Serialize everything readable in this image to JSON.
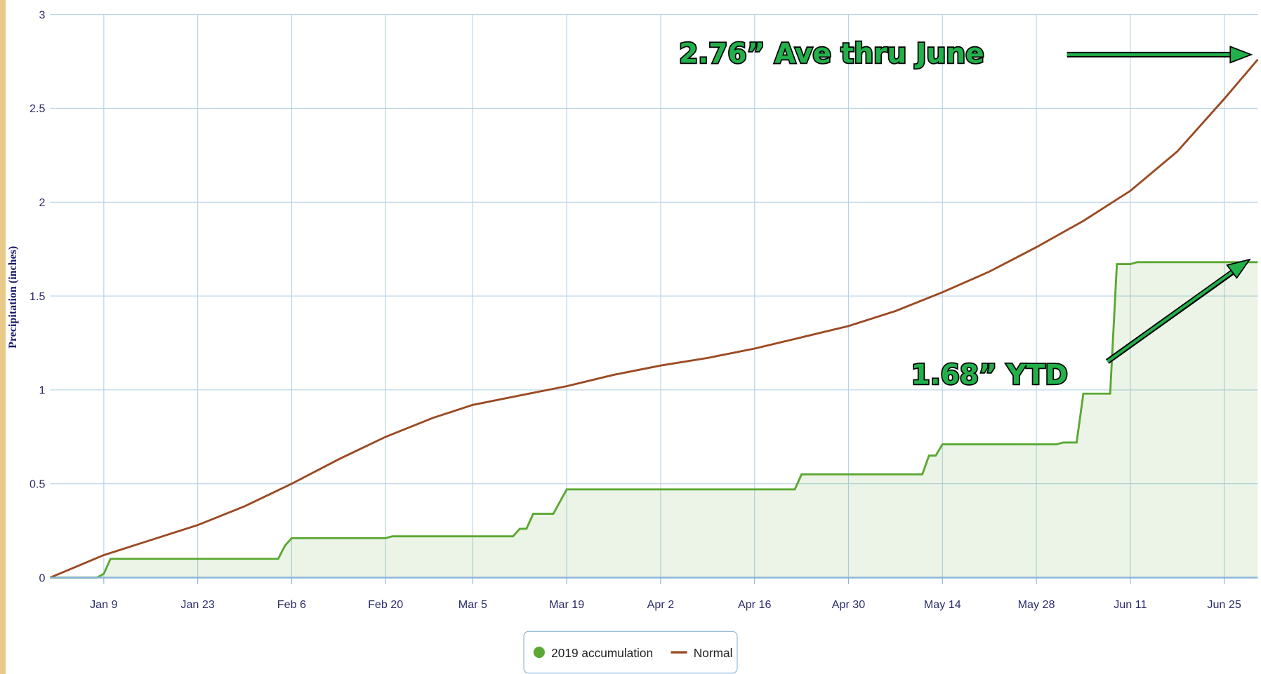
{
  "chart_data": {
    "type": "line",
    "ylabel": "Precipitation (inches)",
    "xlim": [
      1,
      181
    ],
    "ylim": [
      0,
      3
    ],
    "yticks": [
      0,
      0.5,
      1,
      1.5,
      2,
      2.5,
      3
    ],
    "xticks": [
      {
        "value": 9,
        "label": "Jan 9"
      },
      {
        "value": 23,
        "label": "Jan 23"
      },
      {
        "value": 37,
        "label": "Feb 6"
      },
      {
        "value": 51,
        "label": "Feb 20"
      },
      {
        "value": 64,
        "label": "Mar 5"
      },
      {
        "value": 78,
        "label": "Mar 19"
      },
      {
        "value": 92,
        "label": "Apr 2"
      },
      {
        "value": 106,
        "label": "Apr 16"
      },
      {
        "value": 120,
        "label": "Apr 30"
      },
      {
        "value": 134,
        "label": "May 14"
      },
      {
        "value": 148,
        "label": "May 28"
      },
      {
        "value": 162,
        "label": "Jun 11"
      },
      {
        "value": 176,
        "label": "Jun 25"
      }
    ],
    "grid": true,
    "legend": "bottom",
    "series": [
      {
        "name": "2019 accumulation",
        "color": "#5aa832",
        "area": true,
        "x": [
          1,
          8,
          9,
          10,
          35,
          36,
          37,
          51,
          52,
          70,
          71,
          72,
          73,
          76,
          78,
          112,
          113,
          131,
          132,
          133,
          134,
          151,
          152,
          153,
          154,
          155,
          159,
          160,
          162,
          163,
          181
        ],
        "values": [
          0,
          0,
          0.02,
          0.1,
          0.1,
          0.17,
          0.21,
          0.21,
          0.22,
          0.22,
          0.26,
          0.26,
          0.34,
          0.34,
          0.47,
          0.47,
          0.55,
          0.55,
          0.65,
          0.65,
          0.71,
          0.71,
          0.72,
          0.72,
          0.72,
          0.98,
          0.98,
          1.67,
          1.67,
          1.68,
          1.68
        ]
      },
      {
        "name": "Normal",
        "color": "#9b4a22",
        "area": false,
        "x": [
          1,
          9,
          16,
          23,
          30,
          37,
          44,
          51,
          58,
          64,
          71,
          78,
          85,
          92,
          99,
          106,
          113,
          120,
          127,
          134,
          141,
          148,
          155,
          162,
          169,
          176,
          181
        ],
        "values": [
          0,
          0.12,
          0.2,
          0.28,
          0.38,
          0.5,
          0.63,
          0.75,
          0.85,
          0.92,
          0.97,
          1.02,
          1.08,
          1.13,
          1.17,
          1.22,
          1.28,
          1.34,
          1.42,
          1.52,
          1.63,
          1.76,
          1.9,
          2.06,
          2.27,
          2.55,
          2.76
        ]
      }
    ],
    "annotations": [
      "2.76” Ave thru June",
      "1.68” YTD"
    ]
  }
}
